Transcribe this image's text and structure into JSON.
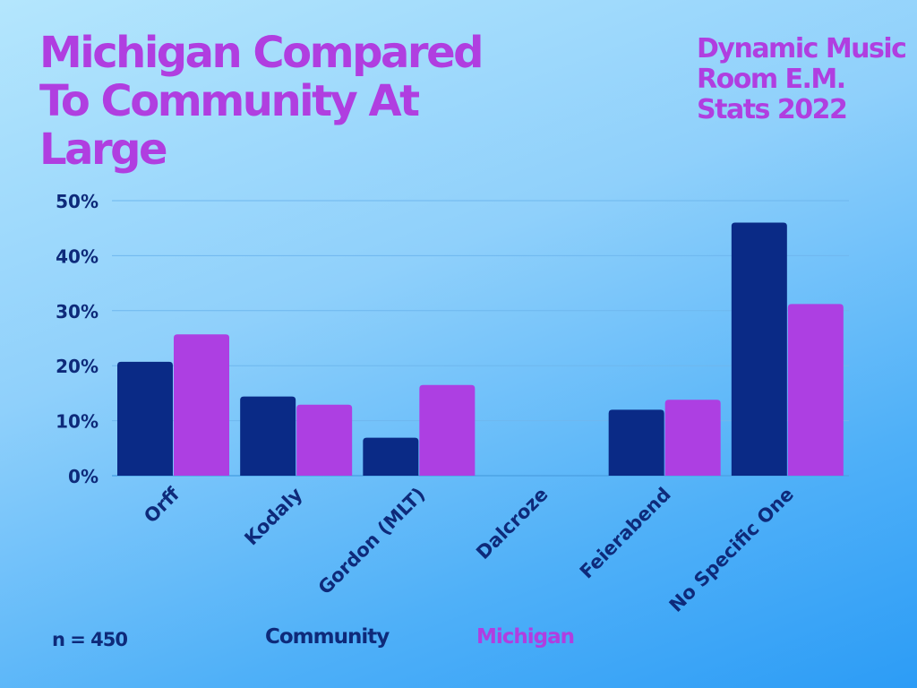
{
  "chart_data": {
    "type": "bar",
    "title": "Michigan Compared To Community At Large",
    "subtitle": "Dynamic Music Room E.M. Stats 2022",
    "categories": [
      "Orff",
      "Kodaly",
      "Gordon (MLT)",
      "Dalcroze",
      "Feierabend",
      "No Specific One"
    ],
    "series": [
      {
        "name": "Community",
        "values": [
          20.7,
          14.4,
          6.9,
          0,
          12.0,
          46.0
        ],
        "color": "#0a2a86"
      },
      {
        "name": "Michigan",
        "values": [
          25.7,
          12.9,
          16.5,
          0,
          13.8,
          31.2
        ],
        "color": "#ad3fe2"
      }
    ],
    "yticks": [
      "0%",
      "10%",
      "20%",
      "30%",
      "40%",
      "50%"
    ],
    "ylim": [
      0,
      50
    ],
    "grid": true,
    "legend": "bottom",
    "note": "n = 450"
  }
}
